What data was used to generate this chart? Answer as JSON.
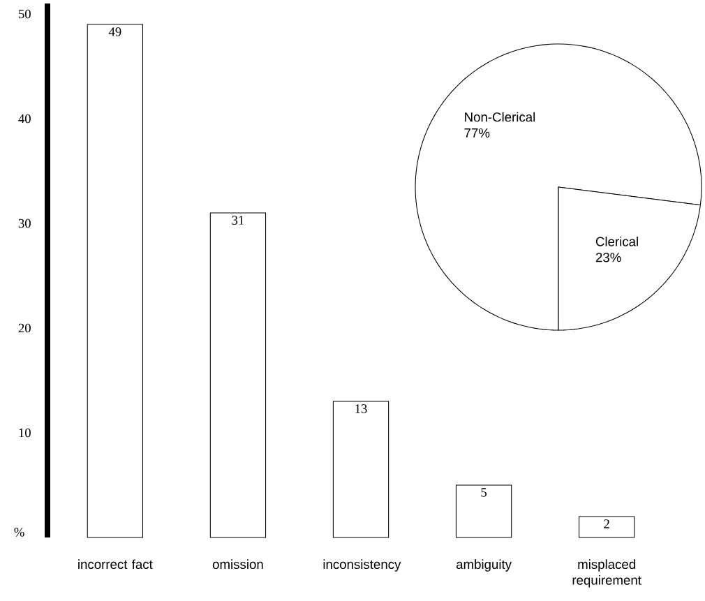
{
  "chart_data": [
    {
      "type": "bar",
      "categories": [
        "incorrect fact",
        "omission",
        "inconsistency",
        "ambiguity",
        "misplaced requirement"
      ],
      "values": [
        49,
        31,
        13,
        5,
        2
      ],
      "color": "#ffffff",
      "ylim": [
        0,
        51
      ],
      "yticks": [
        10,
        20,
        30,
        40,
        50
      ],
      "ylabel": "%",
      "data_labels": true
    },
    {
      "type": "pie",
      "categories": [
        "Non-Clerical",
        "Clerical"
      ],
      "values": [
        77,
        23
      ],
      "colors": [
        "#ffffff",
        "#ffffff"
      ],
      "value_labels": [
        "77%",
        "23%"
      ]
    }
  ]
}
